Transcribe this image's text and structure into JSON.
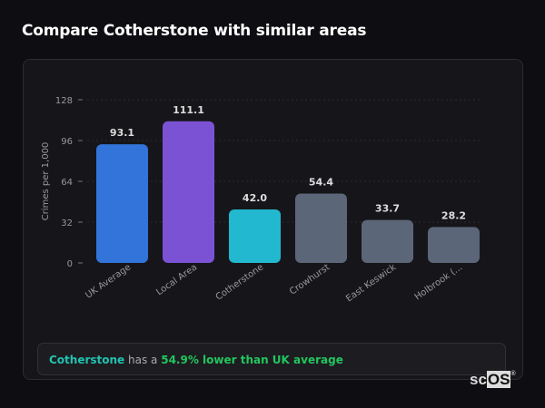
{
  "header": {
    "title": "Compare Cotherstone with similar areas"
  },
  "chart_data": {
    "type": "bar",
    "categories": [
      "UK Average",
      "Local Area",
      "Cotherstone",
      "Crowhurst",
      "East Keswick",
      "Holbrook (..."
    ],
    "values": [
      93.1,
      111.1,
      42.0,
      54.4,
      33.7,
      28.2
    ],
    "value_labels": [
      "93.1",
      "111.1",
      "42.0",
      "54.4",
      "33.7",
      "28.2"
    ],
    "colors": [
      "#3274d9",
      "#7b52d4",
      "#22b8cf",
      "#5b6678",
      "#5b6678",
      "#5b6678"
    ],
    "ylabel": "Crimes per 1,000",
    "xlabel": "",
    "ylim": [
      0,
      128
    ],
    "yticks": [
      0,
      32,
      64,
      96,
      128
    ],
    "grid": true
  },
  "summary": {
    "place": "Cotherstone",
    "middle": " has a ",
    "stat": "54.9% lower than UK average"
  },
  "logo": {
    "text_a": "sc",
    "text_b": "OS",
    "mark": "®"
  }
}
